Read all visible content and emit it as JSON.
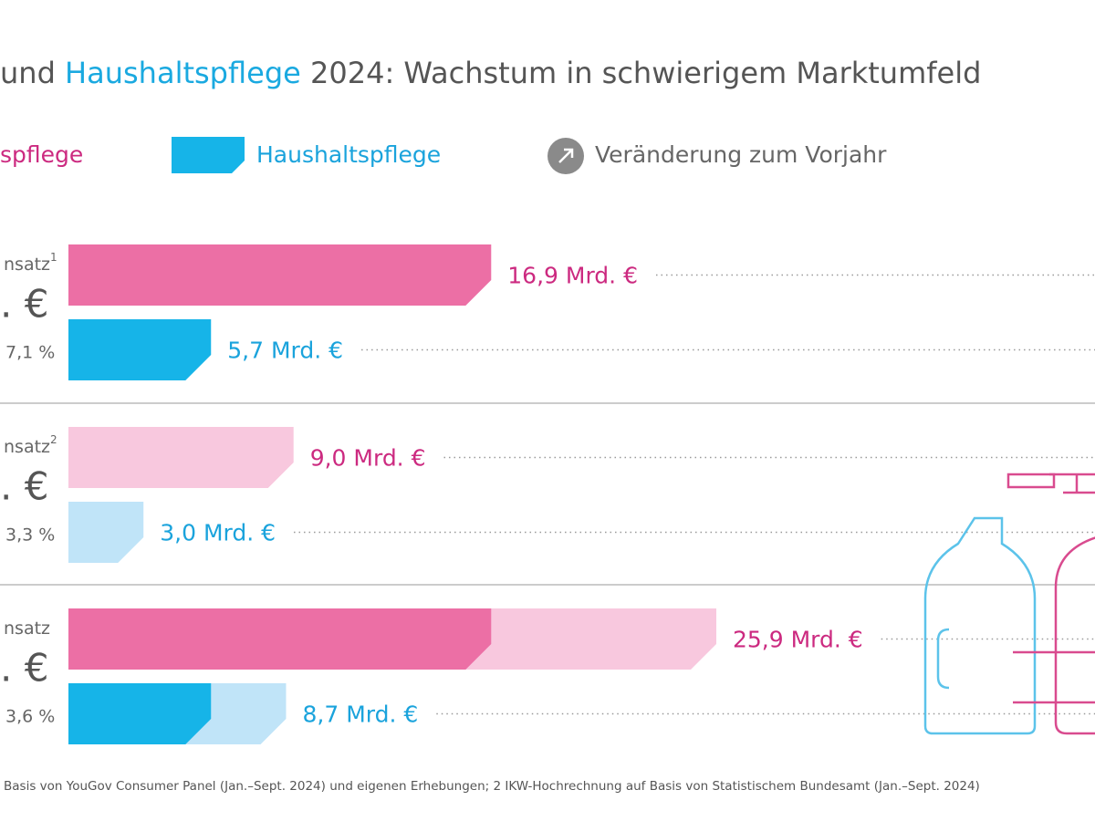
{
  "chart_data": {
    "type": "bar",
    "title_parts": [
      {
        "text": "und ",
        "color": "#555555"
      },
      {
        "text": "Haushaltspflege",
        "color": "#1aa9e0"
      },
      {
        "text": " 2024: Wachstum in schwierigem Marktumfeld",
        "color": "#555555"
      }
    ],
    "legend_note": "Veränderung zum Vorjahr",
    "categories": [
      "nsatz",
      "nsatz",
      "nsatz"
    ],
    "category_notes": [
      "1",
      "2",
      null
    ],
    "category_totals": [
      ". €",
      ". €",
      ". €"
    ],
    "changes": [
      "7,1 %",
      "3,3 %",
      "3,6 %"
    ],
    "row_styles": [
      "solid",
      "light",
      "stacked"
    ],
    "series": [
      {
        "name": "spflege",
        "color": "#ec6fa5",
        "light_color": "#f8c8de",
        "label_color": "#cc2a80",
        "values": [
          16.9,
          9.0,
          25.9
        ],
        "value_labels": [
          "16,9 Mrd. €",
          "9,0 Mrd. €",
          "25,9 Mrd. €"
        ]
      },
      {
        "name": "Haushaltspflege",
        "color": "#16b4e8",
        "light_color": "#c0e4f8",
        "label_color": "#1aa3dc",
        "values": [
          5.7,
          3.0,
          8.7
        ],
        "value_labels": [
          "5,7 Mrd. €",
          "3,0 Mrd. €",
          "8,7 Mrd. €"
        ]
      }
    ],
    "footnote": "Basis von YouGov Consumer Panel (Jan.–Sept. 2024) und eigenen Erhebungen; 2 IKW-Hochrechnung auf Basis von Statistischem Bundesamt (Jan.–Sept. 2024)"
  }
}
